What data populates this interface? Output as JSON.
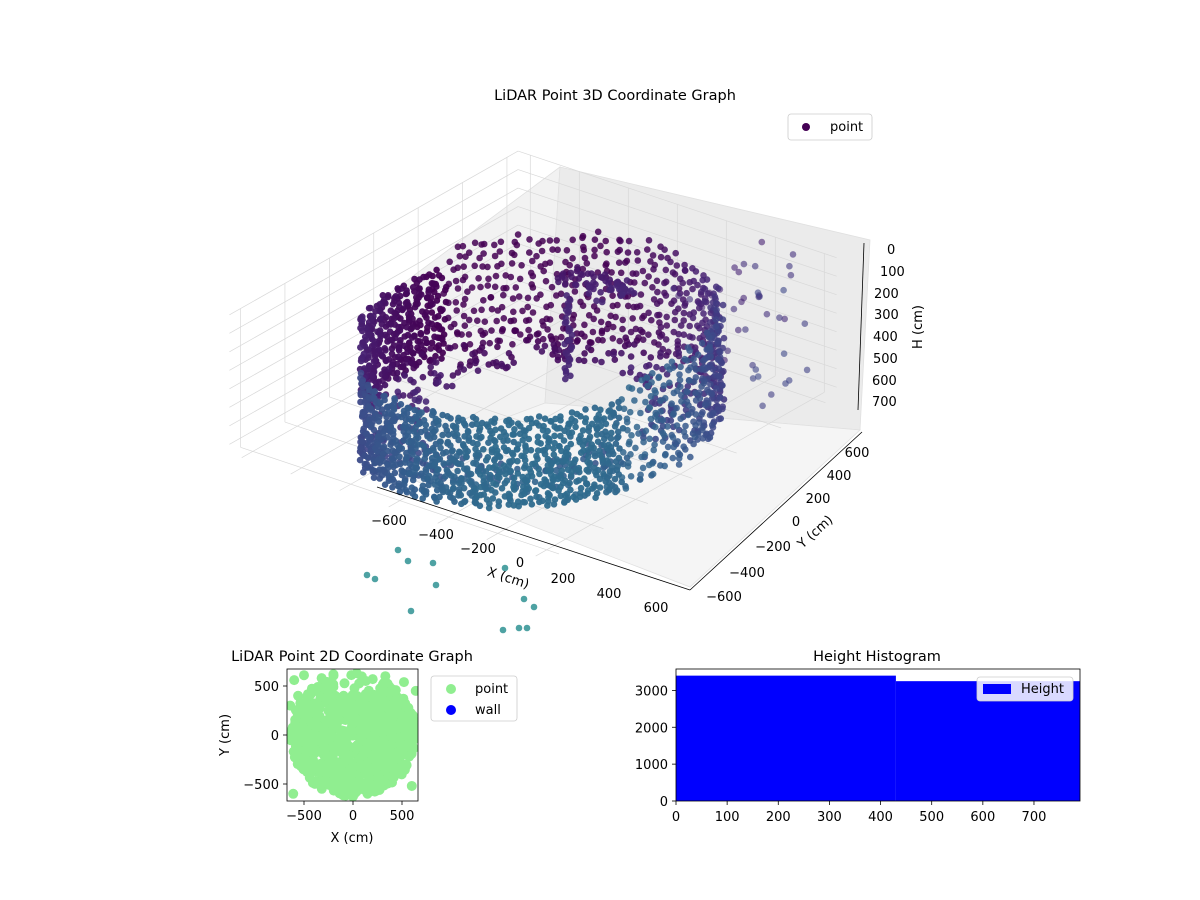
{
  "figure": {
    "background": "#ffffff"
  },
  "chart_data": [
    {
      "type": "scatter3d",
      "title": "LiDAR Point 3D Coordinate Graph",
      "xlabel": "X (cm)",
      "ylabel": "Y (cm)",
      "zlabel": "H (cm)",
      "x_ticks": [
        "−600",
        "−400",
        "−200",
        "0",
        "200",
        "400",
        "600"
      ],
      "y_ticks": [
        "−600",
        "−400",
        "−200",
        "0",
        "200",
        "400",
        "600"
      ],
      "z_ticks": [
        "0",
        "100",
        "200",
        "300",
        "400",
        "500",
        "600",
        "700"
      ],
      "xlim": [
        -650,
        650
      ],
      "ylim": [
        -650,
        650
      ],
      "zlim": [
        0,
        750
      ],
      "z_axis_inverted": true,
      "grid": true,
      "colormap": "viridis",
      "legend": {
        "placement": "upper right",
        "entries": [
          "point"
        ]
      },
      "series": [
        {
          "name": "point",
          "description_of_shape": "dense cylindrical wall of points around the origin with scattered outliers",
          "wall_radius_cm": 550,
          "wall_height_range_cm": [
            0,
            750
          ],
          "marker_color": "#440154"
        }
      ]
    },
    {
      "type": "scatter",
      "title": "LiDAR Point 2D Coordinate Graph",
      "xlabel": "X (cm)",
      "ylabel": "Y (cm)",
      "x_ticks": [
        "−500",
        "0",
        "500"
      ],
      "y_ticks": [
        "−500",
        "0",
        "500"
      ],
      "xlim": [
        -670,
        670
      ],
      "ylim": [
        -680,
        680
      ],
      "legend": {
        "placement": "outside right",
        "entries": [
          "point",
          "wall"
        ]
      },
      "series": [
        {
          "name": "point",
          "color": "#90ee90",
          "shape": "filled disc around origin radius ~650 with outliers"
        },
        {
          "name": "wall",
          "color": "#0000ff",
          "points": []
        }
      ]
    },
    {
      "type": "bar",
      "title": "Height Histogram",
      "xlabel": "",
      "ylabel": "",
      "x_ticks": [
        "0",
        "100",
        "200",
        "300",
        "400",
        "500",
        "600",
        "700"
      ],
      "y_ticks": [
        "0",
        "1000",
        "2000",
        "3000"
      ],
      "xlim": [
        0,
        790
      ],
      "ylim": [
        0,
        3580
      ],
      "bar_color": "#0000ff",
      "legend": {
        "placement": "upper right",
        "entries": [
          "Height"
        ]
      },
      "series": [
        {
          "name": "Height",
          "bins": [
            [
              0,
              430
            ],
            [
              430,
              790
            ]
          ],
          "values": [
            3400,
            3250
          ]
        }
      ]
    }
  ]
}
